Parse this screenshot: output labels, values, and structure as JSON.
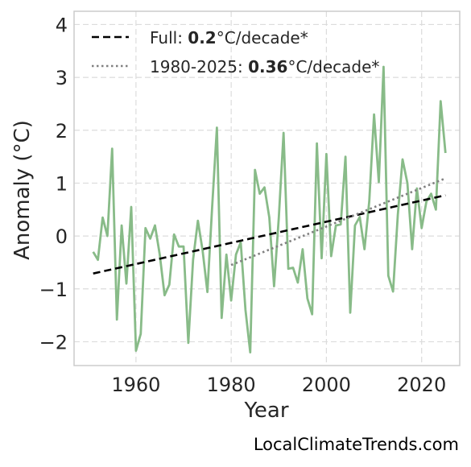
{
  "chart_data": {
    "type": "line",
    "xlabel": "Year",
    "ylabel": "Anomaly (°C)",
    "xlim": [
      1947,
      2028
    ],
    "ylim": [
      -2.45,
      4.25
    ],
    "xticks": [
      1960,
      1980,
      2000,
      2020
    ],
    "yticks": [
      -2,
      -1,
      0,
      1,
      2,
      3,
      4
    ],
    "grid": true,
    "legend_position": "top-left",
    "series": [
      {
        "kind": "observed",
        "color": "#88bb88",
        "x": [
          1951,
          1952,
          1953,
          1954,
          1955,
          1956,
          1957,
          1958,
          1959,
          1960,
          1961,
          1962,
          1963,
          1964,
          1965,
          1966,
          1967,
          1968,
          1969,
          1970,
          1971,
          1972,
          1973,
          1974,
          1975,
          1976,
          1977,
          1978,
          1979,
          1980,
          1981,
          1982,
          1983,
          1984,
          1985,
          1986,
          1987,
          1988,
          1989,
          1990,
          1991,
          1992,
          1993,
          1994,
          1995,
          1996,
          1997,
          1998,
          1999,
          2000,
          2001,
          2002,
          2003,
          2004,
          2005,
          2006,
          2007,
          2008,
          2009,
          2010,
          2011,
          2012,
          2013,
          2014,
          2015,
          2016,
          2017,
          2018,
          2019,
          2020,
          2021,
          2022,
          2023,
          2024,
          2025
        ],
        "values": [
          -0.3,
          -0.45,
          0.35,
          0.0,
          1.65,
          -1.58,
          0.2,
          -0.9,
          0.55,
          -2.17,
          -1.85,
          0.15,
          -0.05,
          0.2,
          -0.35,
          -1.12,
          -0.92,
          0.03,
          -0.2,
          -0.2,
          -2.02,
          -0.45,
          0.29,
          -0.28,
          -1.06,
          0.55,
          2.05,
          -1.55,
          -0.35,
          -1.22,
          -0.35,
          -0.12,
          -1.4,
          -2.2,
          1.25,
          0.8,
          0.92,
          0.35,
          -0.95,
          0.35,
          1.95,
          -0.62,
          -0.6,
          -0.88,
          -0.25,
          -1.18,
          -1.48,
          1.75,
          -0.42,
          1.55,
          -0.38,
          0.2,
          0.22,
          1.5,
          -1.45,
          0.2,
          0.36,
          -0.25,
          0.65,
          2.3,
          1.02,
          3.2,
          -0.75,
          -1.05,
          0.4,
          1.45,
          1.0,
          -0.25,
          0.9,
          0.15,
          0.65,
          0.8,
          0.5,
          2.55,
          1.57
        ]
      },
      {
        "kind": "trend-full",
        "color": "#000000",
        "x": [
          1951,
          2025
        ],
        "values": [
          -0.71,
          0.77
        ]
      },
      {
        "kind": "trend-recent",
        "color": "#808080",
        "x": [
          1980,
          2025
        ],
        "values": [
          -0.55,
          1.09
        ]
      }
    ],
    "legend": [
      {
        "prefix": "Full: ",
        "value": "0.2",
        "suffix": "°C/decade*",
        "style": "dashed",
        "color": "#000000"
      },
      {
        "prefix": "1980-2025: ",
        "value": "0.36",
        "suffix": "°C/decade*",
        "style": "dotted",
        "color": "#808080"
      }
    ]
  },
  "credit": "LocalClimateTrends.com"
}
